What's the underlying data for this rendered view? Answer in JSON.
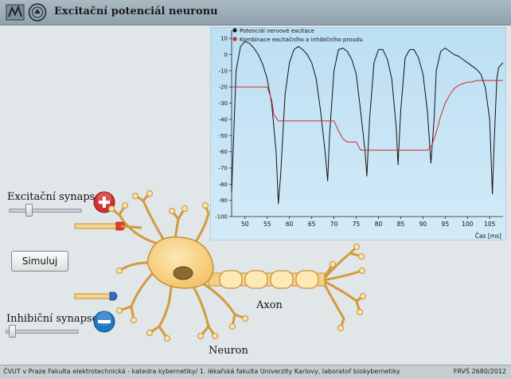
{
  "app": {
    "title": "Excitační potenciál neuronu"
  },
  "colors": {
    "excitation": "#111111",
    "combination": "#d22a2a",
    "plot_bg": "#c4e2f3",
    "accent_plus": "#d32f2f",
    "accent_minus": "#1f77c4"
  },
  "chart_data": {
    "type": "line",
    "xlabel": "Čas [ms]",
    "ylabel": "",
    "xlim": [
      47,
      108
    ],
    "ylim": [
      -100,
      15
    ],
    "xticks": [
      50,
      55,
      60,
      65,
      70,
      75,
      80,
      85,
      90,
      95,
      100,
      105
    ],
    "yticks": [
      10,
      0,
      -10,
      -20,
      -30,
      -40,
      -50,
      -60,
      -70,
      -80,
      -90,
      -100
    ],
    "legend_position": "top-left",
    "grid": false,
    "series": [
      {
        "name": "Potenciál nervové excitace",
        "color": "#111111",
        "points": [
          [
            47,
            -85
          ],
          [
            48,
            -10
          ],
          [
            49,
            5
          ],
          [
            50,
            8
          ],
          [
            51,
            7
          ],
          [
            52,
            4
          ],
          [
            53,
            0
          ],
          [
            54,
            -6
          ],
          [
            55,
            -15
          ],
          [
            56,
            -30
          ],
          [
            57,
            -60
          ],
          [
            57.5,
            -92
          ],
          [
            58,
            -75
          ],
          [
            59,
            -25
          ],
          [
            60,
            -5
          ],
          [
            61,
            3
          ],
          [
            62,
            5
          ],
          [
            63,
            3
          ],
          [
            64,
            0
          ],
          [
            65,
            -5
          ],
          [
            66,
            -15
          ],
          [
            67,
            -35
          ],
          [
            68,
            -60
          ],
          [
            68.6,
            -78
          ],
          [
            69,
            -50
          ],
          [
            70,
            -10
          ],
          [
            71,
            3
          ],
          [
            72,
            4
          ],
          [
            73,
            2
          ],
          [
            74,
            -3
          ],
          [
            75,
            -12
          ],
          [
            76,
            -35
          ],
          [
            77,
            -60
          ],
          [
            77.4,
            -75
          ],
          [
            78,
            -40
          ],
          [
            79,
            -5
          ],
          [
            80,
            3
          ],
          [
            81,
            3
          ],
          [
            82,
            -3
          ],
          [
            83,
            -15
          ],
          [
            84,
            -45
          ],
          [
            84.4,
            -68
          ],
          [
            85,
            -35
          ],
          [
            86,
            -2
          ],
          [
            87,
            3
          ],
          [
            88,
            3
          ],
          [
            89,
            -2
          ],
          [
            90,
            -12
          ],
          [
            91,
            -35
          ],
          [
            91.8,
            -67
          ],
          [
            92.5,
            -40
          ],
          [
            93,
            -10
          ],
          [
            94,
            2
          ],
          [
            95,
            4
          ],
          [
            96,
            2
          ],
          [
            97,
            0
          ],
          [
            98,
            -1
          ],
          [
            99,
            -3
          ],
          [
            100,
            -5
          ],
          [
            101,
            -7
          ],
          [
            102,
            -9
          ],
          [
            103,
            -12
          ],
          [
            104,
            -20
          ],
          [
            105,
            -40
          ],
          [
            105.6,
            -86
          ],
          [
            106,
            -55
          ],
          [
            106.6,
            -15
          ],
          [
            107,
            -8
          ],
          [
            108,
            -5
          ]
        ]
      },
      {
        "name": "Kombinace excitačního a inhibičního proudu",
        "color": "#d22a2a",
        "points": [
          [
            47,
            -20
          ],
          [
            55,
            -20
          ],
          [
            56,
            -28
          ],
          [
            56.5,
            -37
          ],
          [
            57.5,
            -41
          ],
          [
            58,
            -41
          ],
          [
            68,
            -41
          ],
          [
            70,
            -41
          ],
          [
            71,
            -47
          ],
          [
            72,
            -52
          ],
          [
            73,
            -54
          ],
          [
            75,
            -54
          ],
          [
            76,
            -59
          ],
          [
            82,
            -59
          ],
          [
            90,
            -59
          ],
          [
            91,
            -59
          ],
          [
            92,
            -56
          ],
          [
            93,
            -48
          ],
          [
            94,
            -38
          ],
          [
            95,
            -30
          ],
          [
            96,
            -25
          ],
          [
            97,
            -21
          ],
          [
            98,
            -19
          ],
          [
            99,
            -18
          ],
          [
            100,
            -17
          ],
          [
            101,
            -17
          ],
          [
            102,
            -16
          ],
          [
            108,
            -16
          ]
        ]
      }
    ]
  },
  "controls": {
    "excitation_label": "Excitační synapse",
    "inhibition_label": "Inhibiční synapse",
    "simulate_label": "Simuluj",
    "excitation_slider_value": 0.25,
    "inhibition_slider_value": 0.05,
    "plus_icon": "plus-icon",
    "minus_icon": "minus-icon"
  },
  "diagram": {
    "axon_label": "Axon",
    "neuron_label": "Neuron"
  },
  "footer": {
    "left_text": "ČVUT v Praze Fakulta elektrotechnická - katedra kybernetiky/ 1. lékařská fakulta Univerzity Karlovy, laboratoř biokybernetiky",
    "right_text": "FRVŠ 2680/2012"
  }
}
